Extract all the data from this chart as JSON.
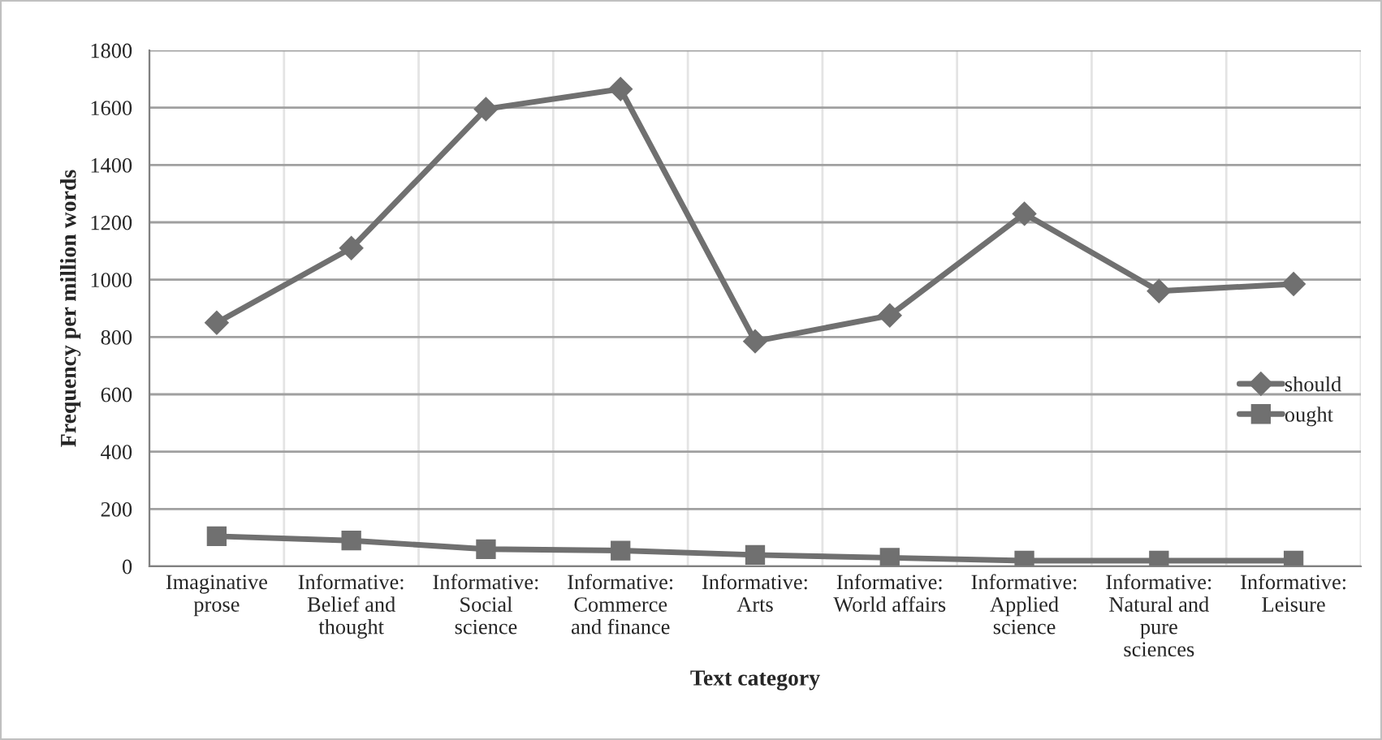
{
  "chart_data": {
    "type": "line",
    "xlabel": "Text category",
    "ylabel": "Frequency per million words",
    "categories": [
      "Imaginative\nprose",
      "Informative:\nBelief and\nthought",
      "Informative:\nSocial\nscience",
      "Informative:\nCommerce\nand finance",
      "Informative:\nArts",
      "Informative:\nWorld affairs",
      "Informative:\nApplied\nscience",
      "Informative:\nNatural and\npure\nsciences",
      "Informative:\nLeisure"
    ],
    "series": [
      {
        "name": "should",
        "color": "#707070",
        "marker": "diamond",
        "values": [
          850,
          1110,
          1595,
          1665,
          785,
          875,
          1230,
          960,
          985
        ]
      },
      {
        "name": "ought",
        "color": "#707070",
        "marker": "square",
        "values": [
          105,
          90,
          60,
          55,
          40,
          30,
          20,
          20,
          20
        ]
      }
    ],
    "ylim": [
      0,
      1800
    ],
    "yticks": [
      0,
      200,
      400,
      600,
      800,
      1000,
      1200,
      1400,
      1600,
      1800
    ],
    "grid": true,
    "legend": "right",
    "line_style": "solid"
  }
}
